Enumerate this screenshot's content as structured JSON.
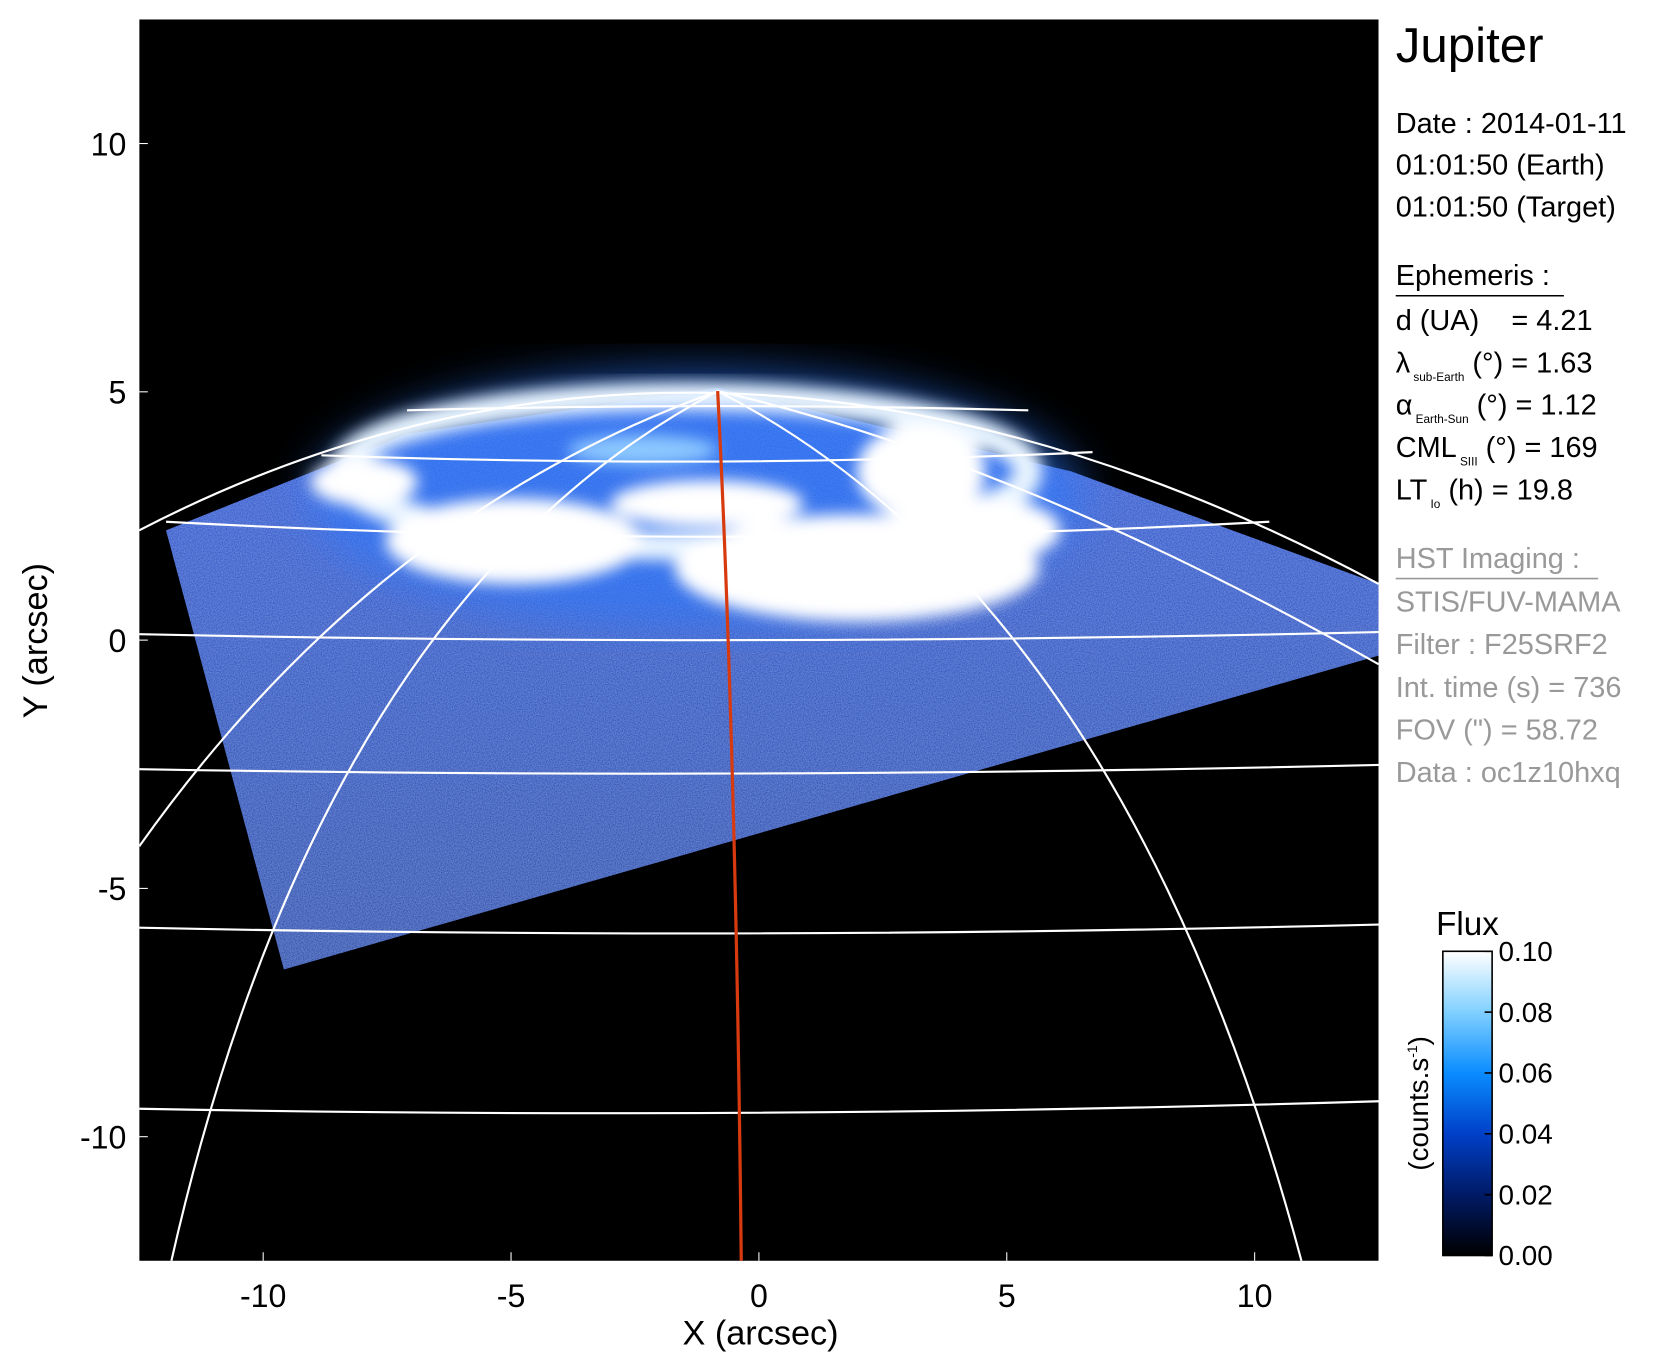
{
  "chart_data": {
    "type": "image",
    "xlabel": "X (arcsec)",
    "ylabel": "Y (arcsec)",
    "xlim": [
      -12.5,
      12.5
    ],
    "ylim": [
      -12.5,
      12.5
    ],
    "xticks": [
      -10,
      -5,
      0,
      5,
      10
    ],
    "yticks": [
      -10,
      -5,
      0,
      5,
      10
    ],
    "colorbar": {
      "title": "Flux",
      "unit": "(counts.s",
      "unit_sup": "-1",
      "unit_end": ")",
      "lim": [
        0,
        0.1
      ],
      "ticks": [
        {
          "value": 0,
          "label": "0.00"
        },
        0.02,
        0.04,
        0.06,
        0.08,
        {
          "value": 0.1,
          "label": "0.10"
        }
      ],
      "colors": [
        "#000000",
        "#001a66",
        "#0040c8",
        "#0a8cff",
        "#80d0ff",
        "#ffffff"
      ]
    }
  },
  "info": {
    "title": "Jupiter",
    "date": [
      "Date : 2014-01-11",
      "01:01:50 (Earth)",
      "01:01:50 (Target)"
    ],
    "ephemeris": {
      "heading": "Ephemeris :",
      "rows": [
        {
          "text": "d (UA)    = 4.21"
        },
        {
          "symbol": "λ",
          "sub": "sub-Earth",
          "rest": " (°) = 1.63"
        },
        {
          "symbol": "α",
          "sub": "Earth-Sun",
          "rest": " (°) = 1.12"
        },
        {
          "symbol": "CML",
          "sub": "SIII",
          "rest": " (°) = 169"
        },
        {
          "symbol": "LT",
          "sub": "Io",
          "rest": " (h) = 19.8"
        }
      ]
    },
    "hst": {
      "heading": "HST Imaging :",
      "rows": [
        "STIS/FUV-MAMA",
        "Filter : F25SRF2",
        "Int. time (s) = 736",
        "FOV (\") = 58.72",
        "Data : oc1z10hxq"
      ]
    }
  }
}
